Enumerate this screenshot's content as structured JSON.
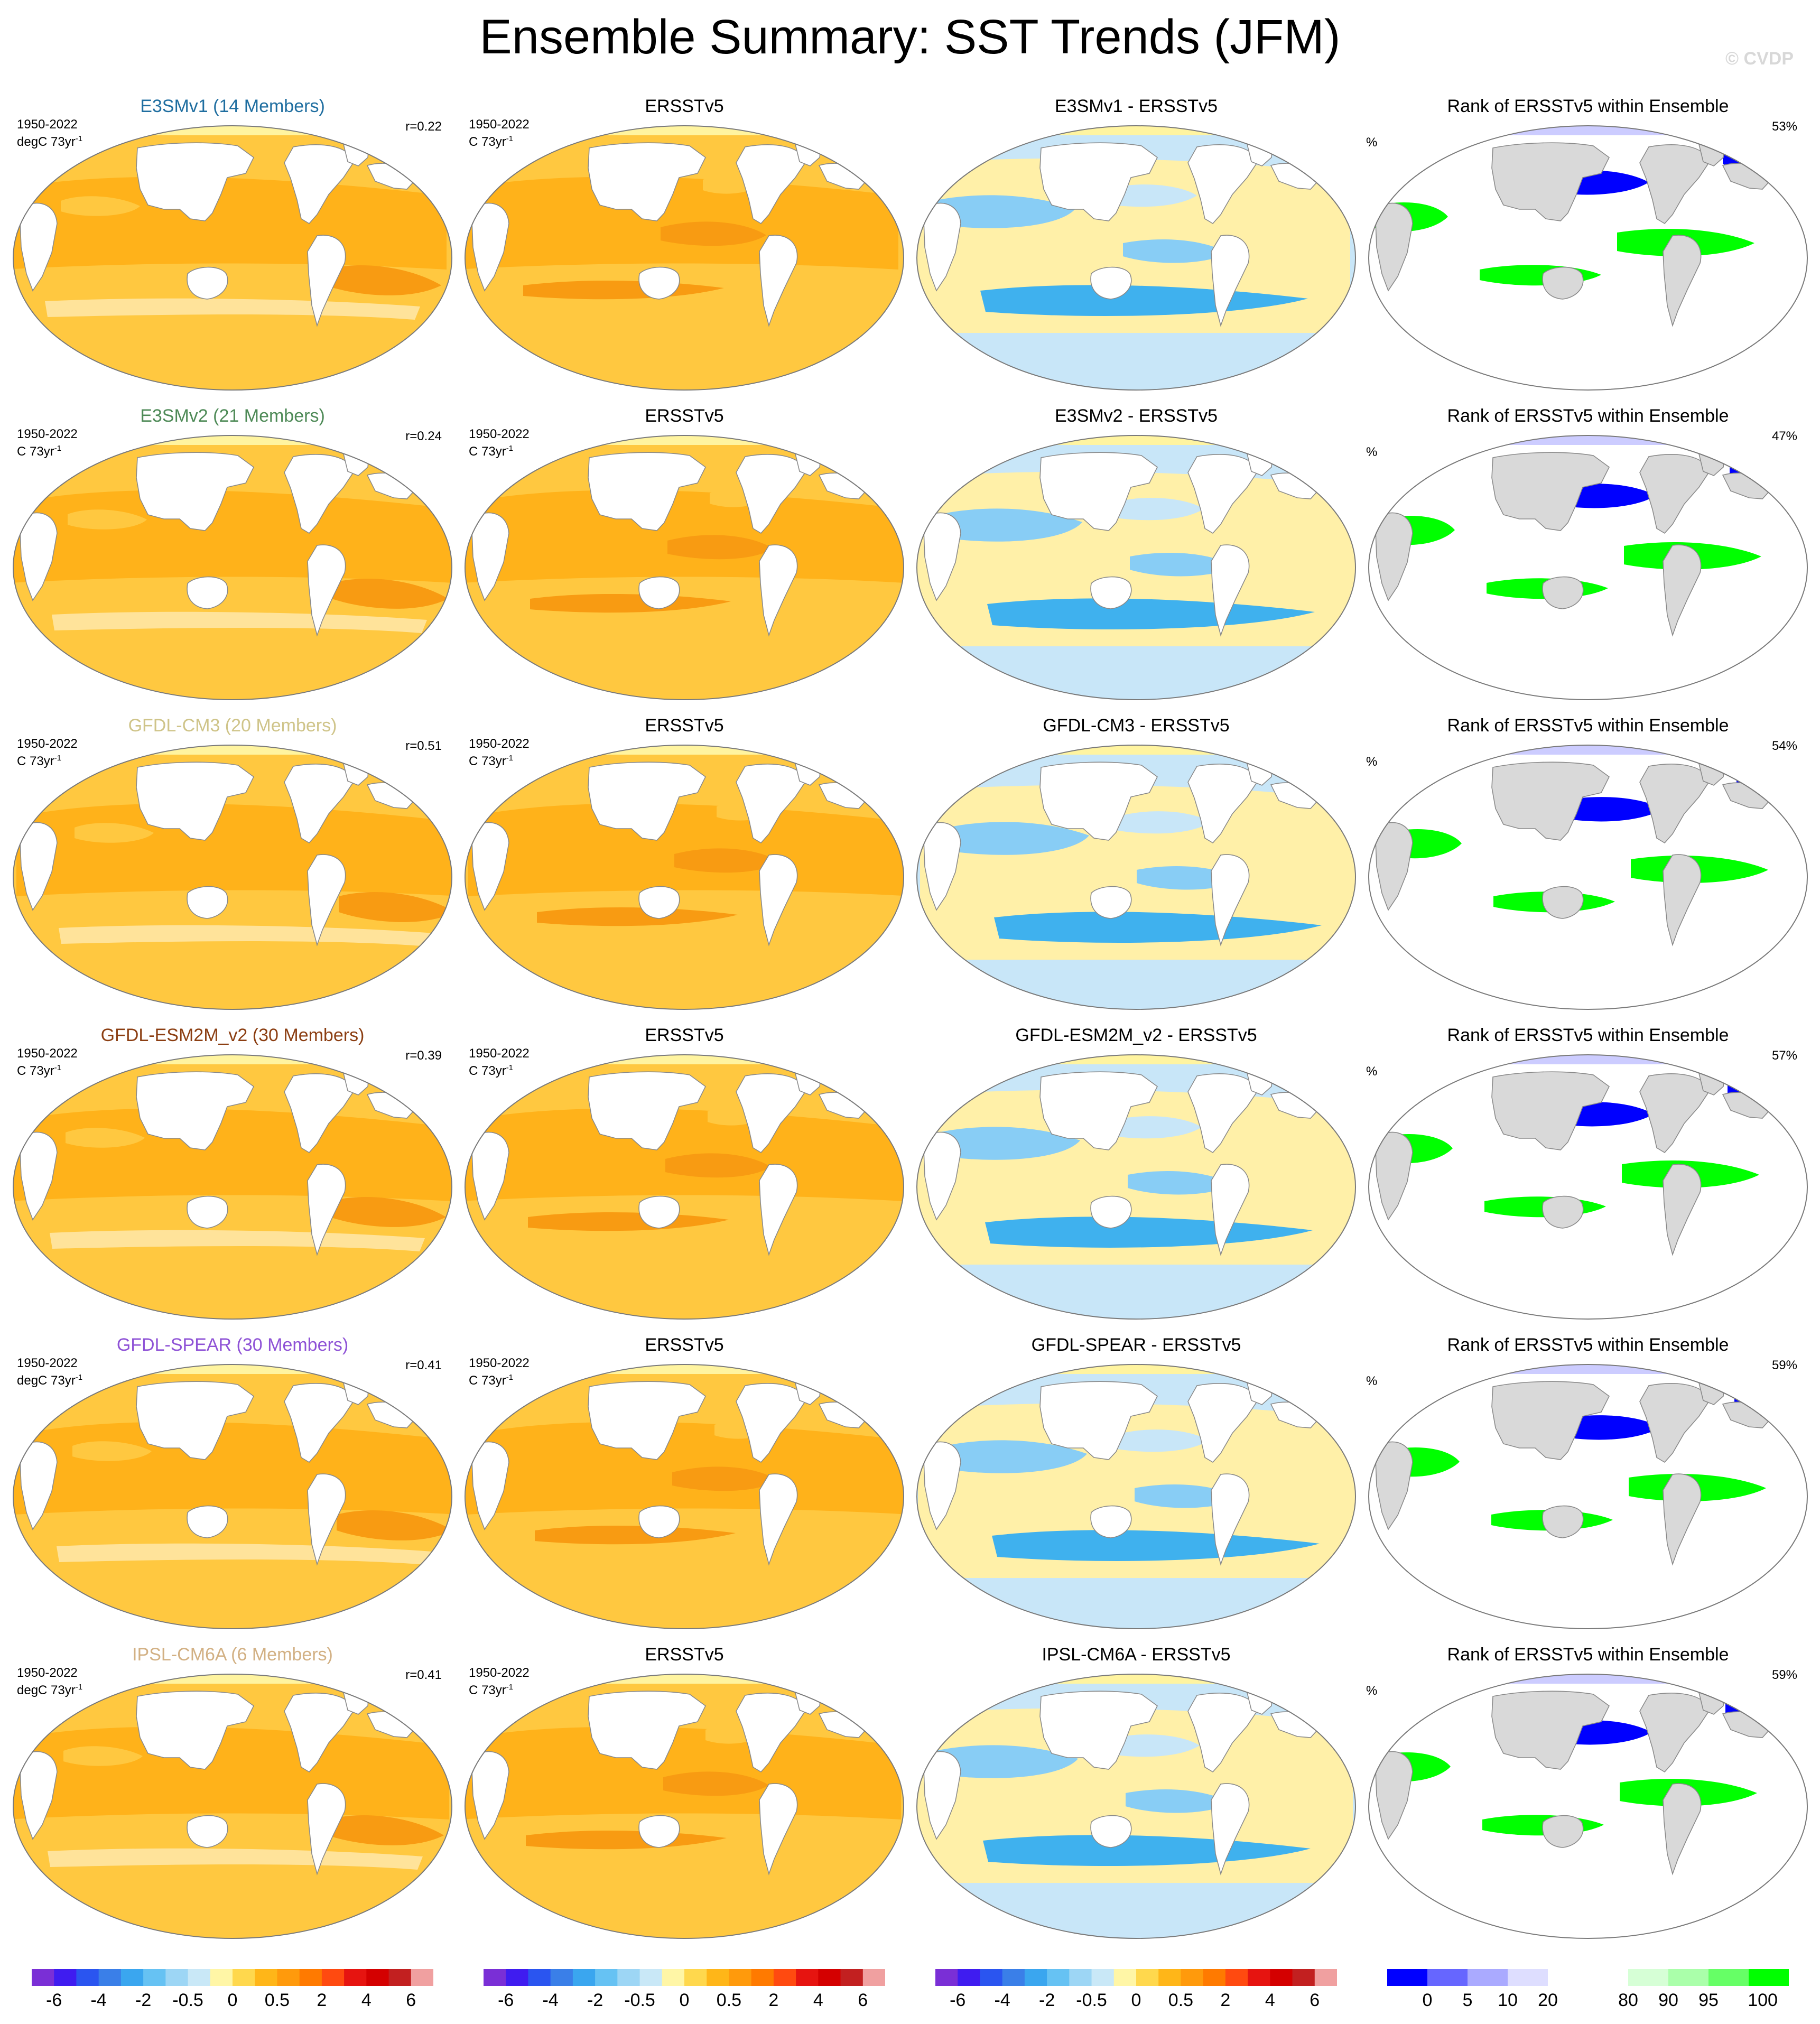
{
  "title": "Ensemble Summary: SST Trends (JFM)",
  "watermark": "© CVDP",
  "ocean_palette": [
    "#ffe39a",
    "#ffc840",
    "#ffb21a",
    "#f89b12"
  ],
  "cool_palette": [
    "#fff0a8",
    "#c8e6f8",
    "#88cdf5",
    "#3fb1ee"
  ],
  "rank_palette": [
    "#ffffff",
    "#0000ff",
    "#00ff00",
    "#ccccff"
  ],
  "land_color": "#ffffff",
  "rank_land_color": "#d9d9d9",
  "rows": [
    {
      "model_title": "E3SMv1 (14 Members)",
      "model_color": "#1f6ea0",
      "period": "1950-2022",
      "units": "degC 73yr",
      "units_exp": "-1",
      "r": "r=0.22",
      "obs_title": "ERSSTv5",
      "obs_units": "C 73yr",
      "obs_units_exp": "-1",
      "diff_title": "E3SMv1 - ERSSTv5",
      "rank_title": "Rank of ERSSTv5 within Ensemble",
      "rank_pct": "53%",
      "pct_sign": "%"
    },
    {
      "model_title": "E3SMv2 (21 Members)",
      "model_color": "#4e8a57",
      "period": "1950-2022",
      "units": "C 73yr",
      "units_exp": "-1",
      "r": "r=0.24",
      "obs_title": "ERSSTv5",
      "obs_units": "C 73yr",
      "obs_units_exp": "-1",
      "diff_title": "E3SMv2 - ERSSTv5",
      "rank_title": "Rank of ERSSTv5 within Ensemble",
      "rank_pct": "47%",
      "pct_sign": "%"
    },
    {
      "model_title": "GFDL-CM3 (20 Members)",
      "model_color": "#cfc489",
      "period": "1950-2022",
      "units": "C 73yr",
      "units_exp": "-1",
      "r": "r=0.51",
      "obs_title": "ERSSTv5",
      "obs_units": "C 73yr",
      "obs_units_exp": "-1",
      "diff_title": "GFDL-CM3 - ERSSTv5",
      "rank_title": "Rank of ERSSTv5 within Ensemble",
      "rank_pct": "54%",
      "pct_sign": "%"
    },
    {
      "model_title": "GFDL-ESM2M_v2 (30 Members)",
      "model_color": "#8b3e12",
      "period": "1950-2022",
      "units": "C 73yr",
      "units_exp": "-1",
      "r": "r=0.39",
      "obs_title": "ERSSTv5",
      "obs_units": "C 73yr",
      "obs_units_exp": "-1",
      "diff_title": "GFDL-ESM2M_v2 - ERSSTv5",
      "rank_title": "Rank of ERSSTv5 within Ensemble",
      "rank_pct": "57%",
      "pct_sign": "%"
    },
    {
      "model_title": "GFDL-SPEAR (30 Members)",
      "model_color": "#8e52d6",
      "period": "1950-2022",
      "units": "degC 73yr",
      "units_exp": "-1",
      "r": "r=0.41",
      "obs_title": "ERSSTv5",
      "obs_units": "C 73yr",
      "obs_units_exp": "-1",
      "diff_title": "GFDL-SPEAR - ERSSTv5",
      "rank_title": "Rank of ERSSTv5 within Ensemble",
      "rank_pct": "59%",
      "pct_sign": "%"
    },
    {
      "model_title": "IPSL-CM6A (6 Members)",
      "model_color": "#d2b083",
      "period": "1950-2022",
      "units": "degC 73yr",
      "units_exp": "-1",
      "r": "r=0.41",
      "obs_title": "ERSSTv5",
      "obs_units": "C 73yr",
      "obs_units_exp": "-1",
      "diff_title": "IPSL-CM6A - ERSSTv5",
      "rank_title": "Rank of ERSSTv5 within Ensemble",
      "rank_pct": "59%",
      "pct_sign": "%"
    }
  ],
  "trend_colorbar": {
    "colors": [
      "#7a2fd6",
      "#3f1cf0",
      "#2a55f0",
      "#3a7fe8",
      "#3aa6ef",
      "#66c2f3",
      "#9dd6f5",
      "#c9e8f7",
      "#fff6a6",
      "#ffd84d",
      "#ffb618",
      "#ff9a0c",
      "#ff7a00",
      "#ff4a10",
      "#e61410",
      "#d40000",
      "#c22020",
      "#f0a0a0"
    ],
    "labels": [
      "-6",
      "-4",
      "-2",
      "-0.5",
      "0",
      "0.5",
      "2",
      "4",
      "6"
    ]
  },
  "rank_colorbar": {
    "colors": [
      "#0000ff",
      "#6666ff",
      "#aaaaff",
      "#dedeff",
      "#ffffff",
      "#ffffff",
      "#d6ffd6",
      "#aaffaa",
      "#66ff66",
      "#00ff00"
    ],
    "labels": [
      "0",
      "5",
      "10",
      "20",
      "80",
      "90",
      "95",
      "100"
    ]
  }
}
